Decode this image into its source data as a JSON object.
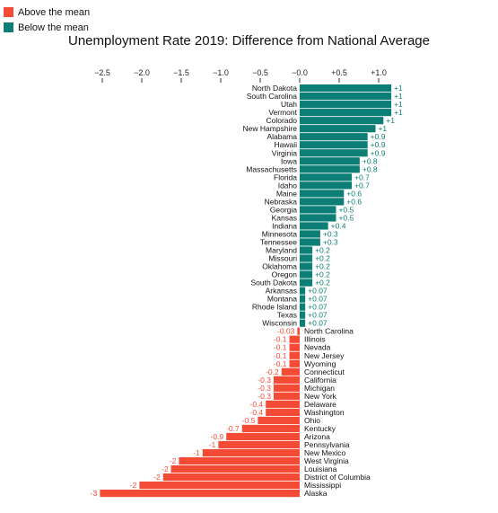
{
  "legend": [
    {
      "label": "Above the mean",
      "color": "#f44b36"
    },
    {
      "label": "Below the mean",
      "color": "#0d7e75"
    }
  ],
  "chart_data": {
    "type": "bar",
    "orientation": "horizontal",
    "title": "Unemployment Rate 2019: Difference from National Average",
    "xlim": [
      -2.5,
      1.0
    ],
    "x_ticks": [
      {
        "value": -2.5,
        "label": "−2.5"
      },
      {
        "value": -2.0,
        "label": "−2.0"
      },
      {
        "value": -1.5,
        "label": "−1.5"
      },
      {
        "value": -1.0,
        "label": "−1.0"
      },
      {
        "value": -0.5,
        "label": "−0.5"
      },
      {
        "value": 0.0,
        "label": "−0.0"
      },
      {
        "value": 0.5,
        "label": "+0.5"
      },
      {
        "value": 1.0,
        "label": "+1.0"
      }
    ],
    "axis_position": "top",
    "colors": {
      "positive": "#0d7e75",
      "negative": "#f44b36"
    },
    "bars": [
      {
        "state": "North Dakota",
        "value": 1.16,
        "label": "+1"
      },
      {
        "state": "South Carolina",
        "value": 1.16,
        "label": "+1"
      },
      {
        "state": "Utah",
        "value": 1.16,
        "label": "+1"
      },
      {
        "state": "Vermont",
        "value": 1.16,
        "label": "+1"
      },
      {
        "state": "Colorado",
        "value": 1.06,
        "label": "+1"
      },
      {
        "state": "New Hampshire",
        "value": 0.96,
        "label": "+1"
      },
      {
        "state": "Alabama",
        "value": 0.86,
        "label": "+0.9"
      },
      {
        "state": "Hawaii",
        "value": 0.86,
        "label": "+0.9"
      },
      {
        "state": "Virginia",
        "value": 0.86,
        "label": "+0.9"
      },
      {
        "state": "Iowa",
        "value": 0.76,
        "label": "+0.8"
      },
      {
        "state": "Massachusetts",
        "value": 0.76,
        "label": "+0.8"
      },
      {
        "state": "Florida",
        "value": 0.66,
        "label": "+0.7"
      },
      {
        "state": "Idaho",
        "value": 0.66,
        "label": "+0.7"
      },
      {
        "state": "Maine",
        "value": 0.56,
        "label": "+0.6"
      },
      {
        "state": "Nebraska",
        "value": 0.56,
        "label": "+0.6"
      },
      {
        "state": "Georgia",
        "value": 0.46,
        "label": "+0.5"
      },
      {
        "state": "Kansas",
        "value": 0.46,
        "label": "+0.5"
      },
      {
        "state": "Indiana",
        "value": 0.36,
        "label": "+0.4"
      },
      {
        "state": "Minnesota",
        "value": 0.26,
        "label": "+0.3"
      },
      {
        "state": "Tennessee",
        "value": 0.26,
        "label": "+0.3"
      },
      {
        "state": "Maryland",
        "value": 0.16,
        "label": "+0.2"
      },
      {
        "state": "Missouri",
        "value": 0.16,
        "label": "+0.2"
      },
      {
        "state": "Oklahoma",
        "value": 0.16,
        "label": "+0.2"
      },
      {
        "state": "Oregon",
        "value": 0.16,
        "label": "+0.2"
      },
      {
        "state": "South Dakota",
        "value": 0.16,
        "label": "+0.2"
      },
      {
        "state": "Arkansas",
        "value": 0.07,
        "label": "+0.07"
      },
      {
        "state": "Montana",
        "value": 0.07,
        "label": "+0.07"
      },
      {
        "state": "Rhode Island",
        "value": 0.07,
        "label": "+0.07"
      },
      {
        "state": "Texas",
        "value": 0.07,
        "label": "+0.07"
      },
      {
        "state": "Wisconsin",
        "value": 0.07,
        "label": "+0.07"
      },
      {
        "state": "North Carolina",
        "value": -0.03,
        "label": "-0.03"
      },
      {
        "state": "Illinois",
        "value": -0.13,
        "label": "-0.1"
      },
      {
        "state": "Nevada",
        "value": -0.13,
        "label": "-0.1"
      },
      {
        "state": "New Jersey",
        "value": -0.13,
        "label": "-0.1"
      },
      {
        "state": "Wyoming",
        "value": -0.13,
        "label": "-0.1"
      },
      {
        "state": "Connecticut",
        "value": -0.23,
        "label": "-0.2"
      },
      {
        "state": "California",
        "value": -0.33,
        "label": "-0.3"
      },
      {
        "state": "Michigan",
        "value": -0.33,
        "label": "-0.3"
      },
      {
        "state": "New York",
        "value": -0.33,
        "label": "-0.3"
      },
      {
        "state": "Delaware",
        "value": -0.43,
        "label": "-0.4"
      },
      {
        "state": "Washington",
        "value": -0.43,
        "label": "-0.4"
      },
      {
        "state": "Ohio",
        "value": -0.53,
        "label": "-0.5"
      },
      {
        "state": "Kentucky",
        "value": -0.73,
        "label": "-0.7"
      },
      {
        "state": "Arizona",
        "value": -0.93,
        "label": "-0.9"
      },
      {
        "state": "Pennsylvania",
        "value": -1.03,
        "label": "-1"
      },
      {
        "state": "New Mexico",
        "value": -1.23,
        "label": "-1"
      },
      {
        "state": "West Virginia",
        "value": -1.53,
        "label": "-2"
      },
      {
        "state": "Louisiana",
        "value": -1.63,
        "label": "-2"
      },
      {
        "state": "District of Columbia",
        "value": -1.73,
        "label": "-2"
      },
      {
        "state": "Mississippi",
        "value": -2.03,
        "label": "-2"
      },
      {
        "state": "Alaska",
        "value": -2.53,
        "label": "-3"
      }
    ]
  }
}
